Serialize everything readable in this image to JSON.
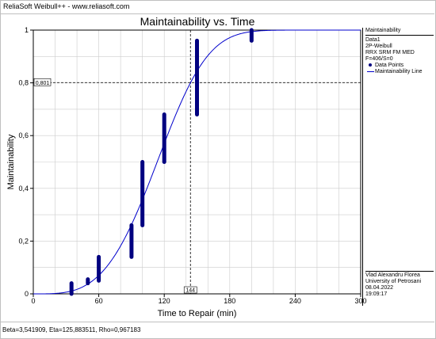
{
  "header": {
    "title": "ReliaSoft Weibull++ - www.reliasoft.com"
  },
  "footer": {
    "params": "Beta=3,541909, Eta=125,883511, Rho=0,967183"
  },
  "legend": {
    "title": "Maintainability",
    "lines": [
      "Data1",
      "2P-Weibull",
      "RRX SRM FM MED",
      "F=406/S=0"
    ],
    "data_points_label": "Data Points",
    "line_label": "Maintainability Line"
  },
  "info": {
    "lines": [
      "Vlad Alexandru Florea",
      "University of Petrosani",
      "08.04.2022",
      "19:09:17"
    ]
  },
  "colors": {
    "curve": "#0000cc",
    "points": "#000080",
    "grid": "#cccccc",
    "refline": "#000000"
  },
  "chart_data": {
    "type": "line",
    "title": "Maintainability vs. Time",
    "xlabel": "Time to Repair (min)",
    "ylabel": "Maintainability",
    "xlim": [
      0,
      300
    ],
    "ylim": [
      0,
      1
    ],
    "xticks": [
      0,
      60,
      120,
      180,
      240,
      300
    ],
    "yticks": [
      0,
      0.2,
      0.4,
      0.6,
      0.8,
      1
    ],
    "ytick_labels": [
      "0",
      "0,2",
      "0,4",
      "0,6",
      "0,8",
      "1"
    ],
    "grid": true,
    "legend_position": "right",
    "weibull": {
      "beta": 3.541909,
      "eta": 125.883511
    },
    "curve_label": "Maintainability Line",
    "points_label": "Data Points",
    "data_points": [
      {
        "x": 35,
        "y_min": 0.0,
        "y_max": 0.04
      },
      {
        "x": 50,
        "y_min": 0.04,
        "y_max": 0.055
      },
      {
        "x": 60,
        "y_min": 0.05,
        "y_max": 0.14
      },
      {
        "x": 90,
        "y_min": 0.14,
        "y_max": 0.26
      },
      {
        "x": 100,
        "y_min": 0.26,
        "y_max": 0.5
      },
      {
        "x": 120,
        "y_min": 0.5,
        "y_max": 0.68
      },
      {
        "x": 150,
        "y_min": 0.68,
        "y_max": 0.96
      },
      {
        "x": 200,
        "y_min": 0.96,
        "y_max": 1.0
      }
    ],
    "reference": {
      "x": 144,
      "y": 0.801,
      "x_label": "144",
      "y_label": "0,801"
    }
  }
}
